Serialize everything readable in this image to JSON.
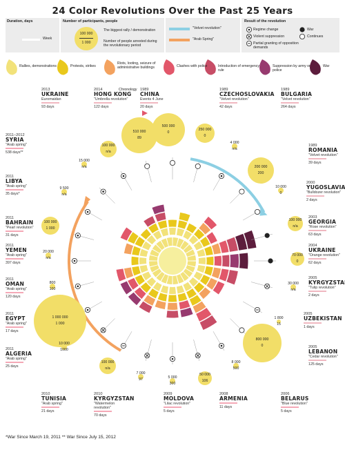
{
  "title": "24 Color Revolutions Over the Past 25 Years",
  "legend": {
    "duration_label": "Duration, days",
    "week_label": "Week",
    "participants_label": "Number of participants, people",
    "bubble_top": "100 000",
    "bubble_bottom": "1 000",
    "biggest_rally": "The biggest rally / demonstration",
    "arrested": "Number of people arrested during the revolutionary period",
    "velvet": "\"Velvet revolution\"",
    "arab": "\"Arab Spring\"",
    "result_label": "Result of the revolution",
    "regime_change": "Regime change",
    "war": "War",
    "violent": "Violent suppression",
    "continues": "Continues",
    "partial": "Partial granting of opposition demands",
    "categories": [
      {
        "label": "Rallies, demonstrations",
        "color": "#f2e27a"
      },
      {
        "label": "Protests, strikes",
        "color": "#e9c81c"
      },
      {
        "label": "Riots, looting, seizure of administrative buildings",
        "color": "#f3a25f"
      },
      {
        "label": "Clashes with police",
        "color": "#e2576a"
      },
      {
        "label": "Introduction of emergency rule",
        "color": "#c74d66"
      },
      {
        "label": "Suppression by army or police",
        "color": "#973a6f"
      },
      {
        "label": "War",
        "color": "#5c1d3c"
      }
    ]
  },
  "chronology": "Chronology",
  "countries": [
    {
      "year": "2013",
      "name": "UKRAINE",
      "desc": "Euromaidan",
      "days": "93 days"
    },
    {
      "year": "2014",
      "name": "HONG KONG",
      "desc": "\"Umbrella revolution\"",
      "days": "122 days"
    },
    {
      "year": "1989",
      "name": "CHINA",
      "desc": "Events 4 June",
      "days": "20 days"
    },
    {
      "year": "1989",
      "name": "CZECHOSLOVAKIA",
      "desc": "\"Velvet revolution\"",
      "days": "42 days"
    },
    {
      "year": "1989",
      "name": "BULGARIA",
      "desc": "\"Velvet revolution\"",
      "days": "264 days"
    },
    {
      "year": "2011–2012",
      "name": "SYRIA",
      "desc": "\"Arab spring\"",
      "days": "538 days**"
    },
    {
      "year": "2011",
      "name": "LIBYA",
      "desc": "\"Arab spring\"",
      "days": "35 days*"
    },
    {
      "year": "2011",
      "name": "BAHRAIN",
      "desc": "\"Pearl revolution\"",
      "days": "31 days"
    },
    {
      "year": "2011",
      "name": "YEMEN",
      "desc": "\"Arab spring\"",
      "days": "397 days"
    },
    {
      "year": "2011",
      "name": "OMAN",
      "desc": "\"Arab spring\"",
      "days": "120 days"
    },
    {
      "year": "2011",
      "name": "EGYPT",
      "desc": "\"Arab spring\"",
      "days": "17 days"
    },
    {
      "year": "2011",
      "name": "ALGERIA",
      "desc": "\"Arab spring\"",
      "days": "25 days"
    },
    {
      "year": "2010",
      "name": "TUNISIA",
      "desc": "\"Arab spring\"",
      "days": "21 days"
    },
    {
      "year": "2010",
      "name": "KYRGYZSTAN",
      "desc": "\"Watermelon revolution\"",
      "days": "70 days"
    },
    {
      "year": "2009",
      "name": "MOLDOVA",
      "desc": "\"Lilac revolution\"",
      "days": "5 days"
    },
    {
      "year": "2008",
      "name": "ARMENIA",
      "desc": "",
      "days": "11 days"
    },
    {
      "year": "2006",
      "name": "BELARUS",
      "desc": "\"Blue revolution\"",
      "days": "5 days"
    },
    {
      "year": "1989",
      "name": "ROMANIA",
      "desc": "\"Velvet revolution\"",
      "days": "39 days"
    },
    {
      "year": "2000",
      "name": "YUGOSLAVIA",
      "desc": "\"Bulldozer revolution\"",
      "days": "2 days"
    },
    {
      "year": "2003",
      "name": "GEORGIA",
      "desc": "\"Rose revolution\"",
      "days": "63 days"
    },
    {
      "year": "2004",
      "name": "UKRAINE",
      "desc": "\"Orange revolution\"",
      "days": "62 days"
    },
    {
      "year": "2005",
      "name": "KYRGYZSTAN",
      "desc": "\"Tulip revolution\"",
      "days": "2 days"
    },
    {
      "year": "2005",
      "name": "UZBEKISTAN",
      "desc": "",
      "days": "1 days"
    },
    {
      "year": "2005",
      "name": "LEBANON",
      "desc": "\"Cedar revolution\"",
      "days": "125 days"
    }
  ],
  "bubbles": [
    {
      "top": "510 000",
      "bottom": "89"
    },
    {
      "top": "500 000",
      "bottom": "0"
    },
    {
      "top": "250 000",
      "bottom": "0"
    },
    {
      "top": "100 000",
      "bottom": "n/a"
    },
    {
      "top": "15 000",
      "bottom": "n/a"
    },
    {
      "top": "9 500",
      "bottom": "n/a"
    },
    {
      "top": "100 000",
      "bottom": "1 000"
    },
    {
      "top": "20 000",
      "bottom": "n/a"
    },
    {
      "top": "800",
      "bottom": "100"
    },
    {
      "top": "1 000 000",
      "bottom": "1 000"
    },
    {
      "top": "10 000",
      "bottom": "1000"
    },
    {
      "top": "100 000",
      "bottom": "n/a"
    },
    {
      "top": "7 000",
      "bottom": "97"
    },
    {
      "top": "5 000",
      "bottom": "300"
    },
    {
      "top": "50 000",
      "bottom": "106"
    },
    {
      "top": "8 000",
      "bottom": "500"
    },
    {
      "top": "800 000",
      "bottom": "0"
    },
    {
      "top": "1 800",
      "bottom": "15"
    },
    {
      "top": "30 000",
      "bottom": "n/a"
    },
    {
      "top": "70 000",
      "bottom": "0"
    },
    {
      "top": "100 000",
      "bottom": "n/a"
    },
    {
      "top": "10 000",
      "bottom": "0"
    },
    {
      "top": "200 000",
      "bottom": "200"
    },
    {
      "top": "4 000",
      "bottom": "n/a"
    }
  ],
  "footnote": "*War Since March 19, 2011    ** War Since July 15, 2012"
}
